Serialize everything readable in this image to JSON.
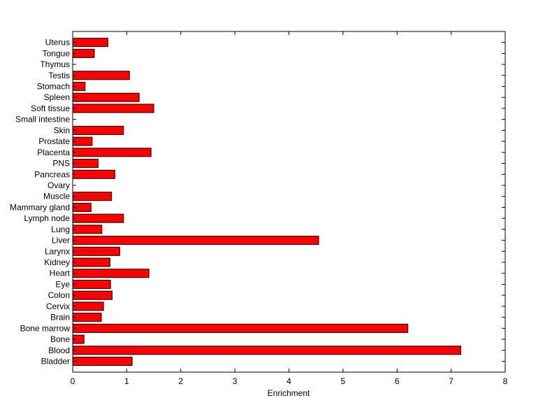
{
  "chart_data": {
    "type": "bar",
    "orientation": "horizontal",
    "title": "",
    "xlabel": "Enrichment",
    "ylabel": "",
    "xlim": [
      0,
      8
    ],
    "xticks": [
      0,
      1,
      2,
      3,
      4,
      5,
      6,
      7,
      8
    ],
    "grid": false,
    "bar_color": "#ff0000",
    "categories": [
      "Bladder",
      "Blood",
      "Bone",
      "Bone marrow",
      "Brain",
      "Cervix",
      "Colon",
      "Eye",
      "Heart",
      "Kidney",
      "Larynx",
      "Liver",
      "Lung",
      "Lymph node",
      "Mammary gland",
      "Muscle",
      "Ovary",
      "Pancreas",
      "PNS",
      "Placenta",
      "Prostate",
      "Skin",
      "Small intestine",
      "Soft tissue",
      "Spleen",
      "Stomach",
      "Testis",
      "Thymus",
      "Tongue",
      "Uterus"
    ],
    "values": [
      1.1,
      7.18,
      0.21,
      6.2,
      0.53,
      0.57,
      0.73,
      0.7,
      1.41,
      0.69,
      0.87,
      4.55,
      0.54,
      0.94,
      0.34,
      0.72,
      0.0,
      0.78,
      0.47,
      1.45,
      0.36,
      0.94,
      0.0,
      1.5,
      1.23,
      0.23,
      1.05,
      0.0,
      0.4,
      0.65
    ]
  }
}
